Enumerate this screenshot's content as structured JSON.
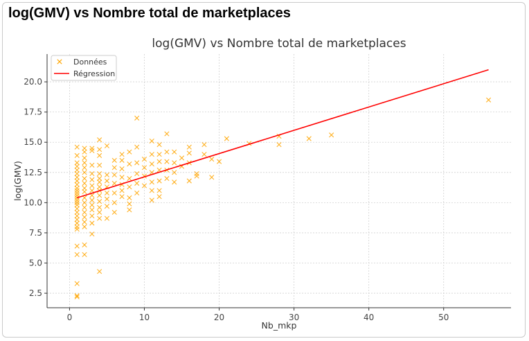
{
  "page": {
    "heading": "log(GMV) vs Nombre total de marketplaces"
  },
  "colors": {
    "scatter": "#ffa500",
    "regression": "#ff0000",
    "grid": "#d0d0d0"
  },
  "chart_data": {
    "type": "scatter",
    "title": "log(GMV) vs Nombre total de marketplaces",
    "xlabel": "Nb_mkp",
    "ylabel": "log(GMV)",
    "xlim": [
      -3,
      59
    ],
    "ylim": [
      1.3,
      22.3
    ],
    "xticks": [
      0,
      10,
      20,
      30,
      40,
      50
    ],
    "yticks": [
      2.5,
      5.0,
      7.5,
      10.0,
      12.5,
      15.0,
      17.5,
      20.0
    ],
    "xtick_labels": [
      "0",
      "10",
      "20",
      "30",
      "40",
      "50"
    ],
    "ytick_labels": [
      "2.5",
      "5.0",
      "7.5",
      "10.0",
      "12.5",
      "15.0",
      "17.5",
      "20.0"
    ],
    "grid": true,
    "legend_position": "top-left",
    "series": [
      {
        "name": "Données",
        "marker": "x",
        "points": [
          [
            1,
            2.2
          ],
          [
            1,
            2.3
          ],
          [
            1,
            3.3
          ],
          [
            1,
            5.7
          ],
          [
            1,
            6.4
          ],
          [
            1,
            7.8
          ],
          [
            1,
            8.0
          ],
          [
            1,
            8.3
          ],
          [
            1,
            8.6
          ],
          [
            1,
            8.9
          ],
          [
            1,
            9.2
          ],
          [
            1,
            9.5
          ],
          [
            1,
            9.8
          ],
          [
            1,
            10.0
          ],
          [
            1,
            10.2
          ],
          [
            1,
            10.4
          ],
          [
            1,
            10.6
          ],
          [
            1,
            10.8
          ],
          [
            1,
            11.0
          ],
          [
            1,
            11.2
          ],
          [
            1,
            11.5
          ],
          [
            1,
            11.8
          ],
          [
            1,
            12.1
          ],
          [
            1,
            12.4
          ],
          [
            1,
            12.7
          ],
          [
            1,
            13.0
          ],
          [
            1,
            13.3
          ],
          [
            1,
            13.9
          ],
          [
            1,
            14.6
          ],
          [
            2,
            5.7
          ],
          [
            2,
            6.5
          ],
          [
            2,
            8.0
          ],
          [
            2,
            8.4
          ],
          [
            2,
            8.8
          ],
          [
            2,
            9.2
          ],
          [
            2,
            9.6
          ],
          [
            2,
            10.0
          ],
          [
            2,
            10.4
          ],
          [
            2,
            10.9
          ],
          [
            2,
            11.2
          ],
          [
            2,
            11.6
          ],
          [
            2,
            12.0
          ],
          [
            2,
            12.5
          ],
          [
            2,
            12.9
          ],
          [
            2,
            13.3
          ],
          [
            2,
            13.7
          ],
          [
            2,
            14.2
          ],
          [
            2,
            14.5
          ],
          [
            3,
            7.4
          ],
          [
            3,
            8.3
          ],
          [
            3,
            8.9
          ],
          [
            3,
            9.4
          ],
          [
            3,
            9.8
          ],
          [
            3,
            10.2
          ],
          [
            3,
            10.6
          ],
          [
            3,
            11.0
          ],
          [
            3,
            11.4
          ],
          [
            3,
            11.9
          ],
          [
            3,
            12.4
          ],
          [
            3,
            13.1
          ],
          [
            3,
            14.3
          ],
          [
            3,
            14.5
          ],
          [
            4,
            4.3
          ],
          [
            4,
            8.7
          ],
          [
            4,
            9.2
          ],
          [
            4,
            9.6
          ],
          [
            4,
            10.1
          ],
          [
            4,
            10.6
          ],
          [
            4,
            11.0
          ],
          [
            4,
            11.3
          ],
          [
            4,
            11.7
          ],
          [
            4,
            12.0
          ],
          [
            4,
            12.4
          ],
          [
            4,
            13.1
          ],
          [
            4,
            13.9
          ],
          [
            4,
            14.4
          ],
          [
            4,
            15.2
          ],
          [
            5,
            8.7
          ],
          [
            5,
            9.7
          ],
          [
            5,
            10.3
          ],
          [
            5,
            10.8
          ],
          [
            5,
            11.3
          ],
          [
            5,
            11.8
          ],
          [
            5,
            12.3
          ],
          [
            5,
            14.7
          ],
          [
            6,
            9.2
          ],
          [
            6,
            10.0
          ],
          [
            6,
            10.8
          ],
          [
            6,
            11.6
          ],
          [
            6,
            12.3
          ],
          [
            6,
            12.9
          ],
          [
            6,
            13.5
          ],
          [
            7,
            10.5
          ],
          [
            7,
            11.0
          ],
          [
            7,
            11.5
          ],
          [
            7,
            12.1
          ],
          [
            7,
            12.8
          ],
          [
            7,
            13.5
          ],
          [
            7,
            14.0
          ],
          [
            8,
            9.4
          ],
          [
            8,
            9.9
          ],
          [
            8,
            10.4
          ],
          [
            8,
            11.3
          ],
          [
            8,
            12.0
          ],
          [
            8,
            13.2
          ],
          [
            8,
            14.2
          ],
          [
            9,
            10.8
          ],
          [
            9,
            11.6
          ],
          [
            9,
            12.4
          ],
          [
            9,
            13.3
          ],
          [
            9,
            14.6
          ],
          [
            9,
            17.0
          ],
          [
            10,
            11.4
          ],
          [
            10,
            12.2
          ],
          [
            10,
            12.9
          ],
          [
            10,
            13.6
          ],
          [
            11,
            10.2
          ],
          [
            11,
            11.0
          ],
          [
            11,
            11.7
          ],
          [
            11,
            12.5
          ],
          [
            11,
            13.2
          ],
          [
            11,
            14.0
          ],
          [
            11,
            15.1
          ],
          [
            12,
            10.5
          ],
          [
            12,
            11.0
          ],
          [
            12,
            11.8
          ],
          [
            12,
            12.7
          ],
          [
            12,
            13.4
          ],
          [
            12,
            14.0
          ],
          [
            12,
            14.8
          ],
          [
            13,
            12.0
          ],
          [
            13,
            12.7
          ],
          [
            13,
            13.4
          ],
          [
            13,
            14.2
          ],
          [
            13,
            15.7
          ],
          [
            14,
            11.7
          ],
          [
            14,
            12.5
          ],
          [
            14,
            13.3
          ],
          [
            14,
            14.2
          ],
          [
            15,
            13.0
          ],
          [
            15,
            13.7
          ],
          [
            16,
            11.8
          ],
          [
            16,
            13.3
          ],
          [
            16,
            14.1
          ],
          [
            16,
            14.6
          ],
          [
            17,
            12.2
          ],
          [
            17,
            12.4
          ],
          [
            18,
            14.0
          ],
          [
            18,
            14.8
          ],
          [
            19,
            12.1
          ],
          [
            19,
            13.6
          ],
          [
            20,
            13.4
          ],
          [
            21,
            15.3
          ],
          [
            24,
            14.9
          ],
          [
            28,
            14.8
          ],
          [
            28,
            15.5
          ],
          [
            32,
            15.3
          ],
          [
            35,
            15.6
          ],
          [
            56,
            18.5
          ]
        ]
      },
      {
        "name": "Régression",
        "line": [
          [
            1,
            10.4
          ],
          [
            56,
            21.0
          ]
        ]
      }
    ]
  }
}
